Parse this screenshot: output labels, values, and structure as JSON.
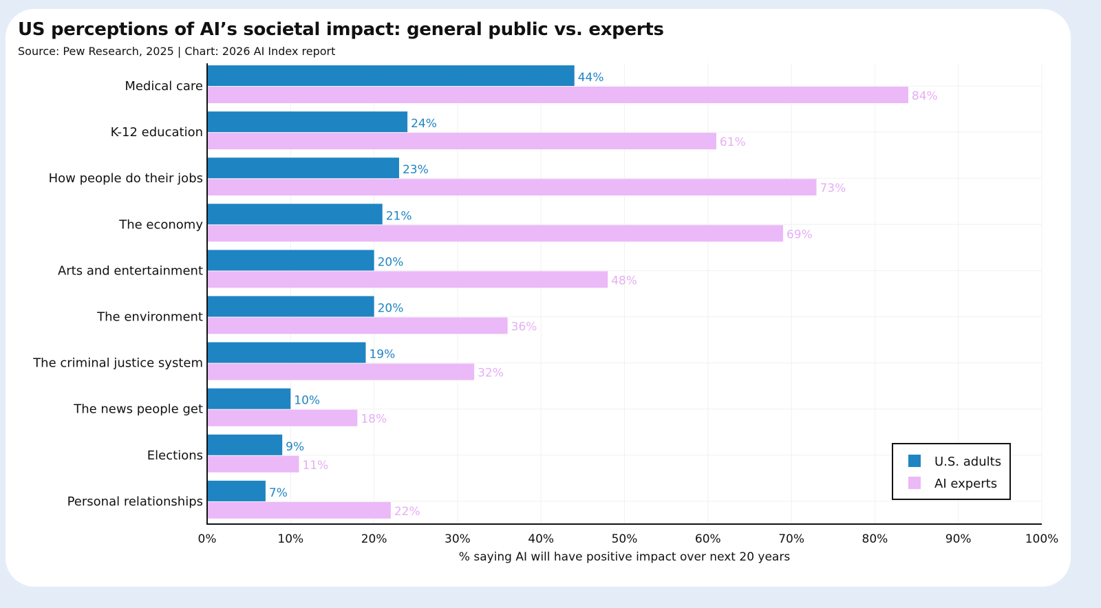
{
  "chart_data": {
    "type": "bar",
    "orientation": "horizontal",
    "title": "US perceptions of AI’s societal impact: general public vs. experts",
    "subtitle": "Source: Pew Research, 2025 | Chart: 2026 AI Index report",
    "categories": [
      "Medical care",
      "K-12 education",
      "How people do their jobs",
      "The economy",
      "Arts and entertainment",
      "The environment",
      "The criminal justice system",
      "The news people get",
      "Elections",
      "Personal relationships"
    ],
    "series": [
      {
        "name": "U.S. adults",
        "color": "#1f84c2",
        "label_color": "#1f84c2",
        "values": [
          44,
          24,
          23,
          21,
          20,
          20,
          19,
          10,
          9,
          7
        ]
      },
      {
        "name": "AI experts",
        "color": "#ebb8f8",
        "label_color": "#e6aef4",
        "values": [
          84,
          61,
          73,
          69,
          48,
          36,
          32,
          18,
          11,
          22
        ]
      }
    ],
    "value_suffix": "%",
    "xlabel": "% saying AI will have positive impact over next 20 years",
    "xlim": [
      0,
      100
    ],
    "xticks": [
      "0%",
      "10%",
      "20%",
      "30%",
      "40%",
      "50%",
      "60%",
      "70%",
      "80%",
      "90%",
      "100%"
    ],
    "grid": true,
    "legend_position": "bottom-right"
  }
}
